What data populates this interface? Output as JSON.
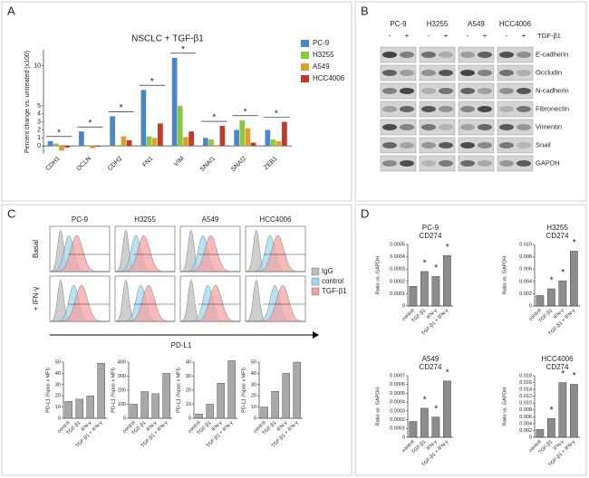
{
  "panel_labels": [
    "A",
    "B",
    "C",
    "D"
  ],
  "chart_data": [
    {
      "type": "bar",
      "title": "NSCLC + TGF-β1",
      "y_label": "Percent change vs. untreated (x100)",
      "categories": [
        "CDH1",
        "OCLN",
        "CDH2",
        "FN1",
        "VIM",
        "SNAI1",
        "SNAI2",
        "ZEB1"
      ],
      "series": [
        {
          "name": "PC-9",
          "color": "#4a86c8",
          "values": [
            0.6,
            1.8,
            3.7,
            7.0,
            11.0,
            1.0,
            2.0,
            2.0
          ]
        },
        {
          "name": "H3255",
          "color": "#8dc63f",
          "values": [
            0.3,
            0.1,
            0.1,
            1.2,
            5.0,
            0.8,
            3.2,
            0.8
          ]
        },
        {
          "name": "A549",
          "color": "#e0a030",
          "values": [
            -0.6,
            -0.3,
            1.2,
            1.0,
            1.1,
            0.1,
            2.2,
            0.6
          ]
        },
        {
          "name": "HCC4006",
          "color": "#c0392b",
          "values": [
            -0.2,
            -0.1,
            0.7,
            2.8,
            1.8,
            2.5,
            0.4,
            3.0
          ]
        }
      ],
      "significance": [
        "*",
        "*",
        "*",
        "*",
        "*",
        "*",
        "*",
        "*"
      ],
      "ylim": [
        -1,
        12
      ],
      "yticks": [
        0,
        1,
        2,
        3,
        4,
        5,
        10
      ]
    },
    {
      "type": "bar",
      "y_label": "PD-L1 (%pos x MFI)",
      "categories": [
        "control",
        "TGF-β1",
        "IFN-γ",
        "TGF-β1 + IFN-γ"
      ],
      "values": [
        15,
        17,
        20,
        49
      ],
      "color": "#a8a8a8",
      "ylim": [
        0,
        50
      ],
      "yticks": [
        0,
        10,
        20,
        30,
        40,
        50
      ]
    },
    {
      "type": "bar",
      "y_label": "PD-L1 (%pos x MFI)",
      "categories": [
        "control",
        "TGF-β1",
        "IFN-γ",
        "TGF-β1 + IFN-γ"
      ],
      "values": [
        100,
        190,
        175,
        320
      ],
      "color": "#a8a8a8",
      "ylim": [
        0,
        400
      ],
      "yticks": [
        0,
        100,
        200,
        300,
        400
      ]
    },
    {
      "type": "bar",
      "y_label": "PD-L1 (%pos x MFI)",
      "categories": [
        "control",
        "TGF-β1",
        "IFN-γ",
        "TGF-β1 + IFN-γ"
      ],
      "values": [
        3,
        10,
        25,
        41
      ],
      "color": "#a8a8a8",
      "ylim": [
        0,
        40
      ],
      "yticks": [
        0,
        10,
        20,
        30,
        40
      ]
    },
    {
      "type": "bar",
      "y_label": "PD-L1 (%pos x MFI)",
      "categories": [
        "control",
        "TGF-β1",
        "IFN-γ",
        "TGF-β1 + IFN-γ"
      ],
      "values": [
        10,
        24,
        40,
        50
      ],
      "color": "#a8a8a8",
      "ylim": [
        0,
        50
      ],
      "yticks": [
        0,
        10,
        20,
        30,
        40,
        50
      ]
    },
    {
      "type": "bar",
      "title": "PC-9",
      "subtitle": "CD274",
      "y_label": "Ratio vs. GAPDH",
      "categories": [
        "control",
        "TGF-β1",
        "IFN-γ",
        "TGF-β1 + IFN-γ"
      ],
      "values": [
        0.00016,
        0.00028,
        0.00024,
        0.00041
      ],
      "significance": [
        null,
        "*",
        "*",
        "*"
      ],
      "color": "#8c8c8c",
      "ylim": [
        0,
        0.0005
      ],
      "yticks": [
        0,
        0.0001,
        0.0002,
        0.0003,
        0.0004,
        0.0005
      ]
    },
    {
      "type": "bar",
      "title": "H3255",
      "subtitle": "CD274",
      "y_label": "Ratio vs. GAPDH",
      "categories": [
        "control",
        "TGF-β1",
        "IFN-γ",
        "TGF-β1 + IFN-γ"
      ],
      "values": [
        0.0017,
        0.0028,
        0.0041,
        0.0089
      ],
      "significance": [
        null,
        "*",
        "*",
        "*"
      ],
      "color": "#8c8c8c",
      "ylim": [
        0,
        0.01
      ],
      "yticks": [
        0,
        0.002,
        0.004,
        0.006,
        0.008,
        {
          "value": 0.01,
          "label": "0.010"
        }
      ]
    },
    {
      "type": "bar",
      "title": "A549",
      "subtitle": "CD274",
      "y_label": "Ratio vs. GAPDH",
      "categories": [
        "control",
        "TGF-β1",
        "IFN-γ",
        "TGF-β1 + IFN-γ"
      ],
      "values": [
        0.00018,
        0.00033,
        0.00023,
        0.00064
      ],
      "significance": [
        null,
        "*",
        "*",
        "*"
      ],
      "color": "#8c8c8c",
      "ylim": [
        0,
        0.0007
      ],
      "yticks": [
        0,
        0.0001,
        0.0002,
        0.0003,
        0.0004,
        0.0005,
        0.0006,
        0.0007
      ]
    },
    {
      "type": "bar",
      "title": "HCC4006",
      "subtitle": "CD274",
      "y_label": "Ratio vs. GAPDH",
      "categories": [
        "control",
        "TGF-β1",
        "IFN-γ",
        "TGF-β1 + IFN-γ"
      ],
      "values": [
        0.0023,
        0.0055,
        0.016,
        0.0155
      ],
      "significance": [
        null,
        "*",
        "*",
        "*"
      ],
      "color": "#8c8c8c",
      "ylim": [
        0,
        0.018
      ],
      "yticks": [
        0,
        0.002,
        0.004,
        0.006,
        0.008,
        {
          "value": 0.01,
          "label": "0.010"
        },
        0.012,
        0.014,
        0.016,
        0.018
      ]
    }
  ],
  "blot": {
    "columns": [
      "PC-9",
      "H3255",
      "A549",
      "HCC4006"
    ],
    "lanes": [
      "-",
      "+"
    ],
    "treatment": "TGF-β1",
    "rows": [
      "E-cadherin",
      "Occludin",
      "N-cadherin",
      "Fibronectin",
      "Vimentin",
      "Snail",
      "GAPDH"
    ]
  },
  "flow": {
    "columns": [
      "PC-9",
      "H3255",
      "A549",
      "HCC4006"
    ],
    "rows": [
      "Basal",
      "+ IFN-γ"
    ],
    "legend": [
      {
        "name": "IgG",
        "color": "#bdbdbd"
      },
      {
        "name": "control",
        "color": "#9fd8ef"
      },
      {
        "name": "TGF-β1",
        "color": "#f4a3a3"
      }
    ],
    "x_label": "PD-L1"
  }
}
